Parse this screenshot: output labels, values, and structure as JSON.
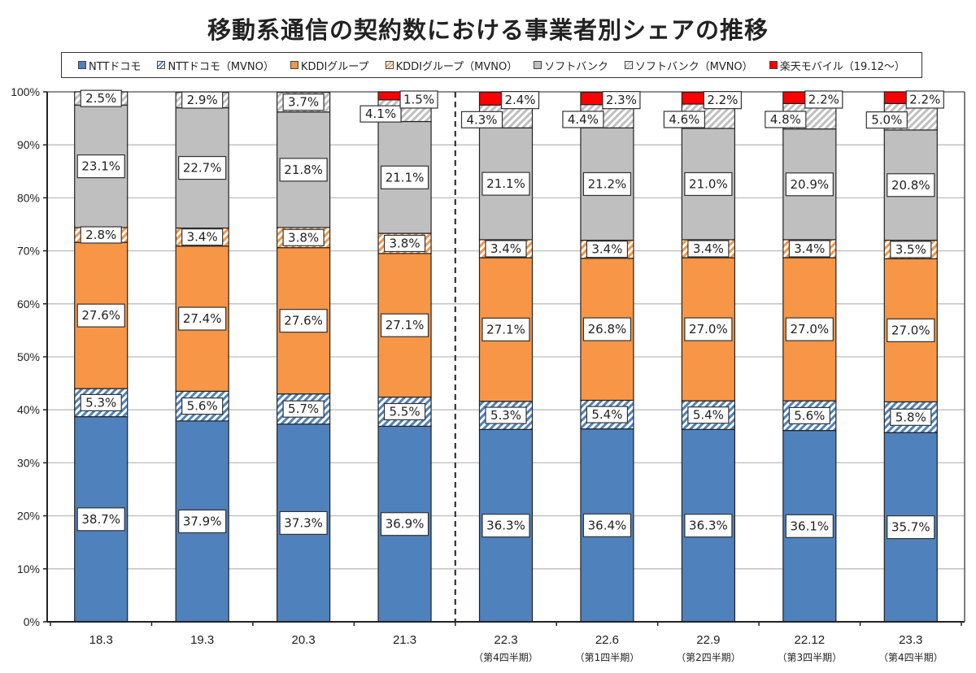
{
  "chart_data": {
    "type": "bar",
    "stacked": true,
    "title": "移動系通信の契約数における事業者別シェアの推移",
    "xlabel": "",
    "ylabel": "",
    "ylim": [
      0,
      100
    ],
    "yticks": [
      "0%",
      "10%",
      "20%",
      "30%",
      "40%",
      "50%",
      "60%",
      "70%",
      "80%",
      "90%",
      "100%"
    ],
    "grid": true,
    "legend_position": "top",
    "categories": [
      "18.3",
      "19.3",
      "20.3",
      "21.3",
      "22.3",
      "22.6",
      "22.9",
      "22.12",
      "23.3"
    ],
    "category_sublabels": [
      "",
      "",
      "",
      "",
      "（第4四半期）",
      "（第1四半期）",
      "（第2四半期）",
      "（第3四半期）",
      "（第4四半期）"
    ],
    "divider_after_category": "21.3",
    "series": [
      {
        "name": "NTTドコモ",
        "color": "#4f81bd",
        "pattern": "solid",
        "values": [
          38.7,
          37.9,
          37.3,
          36.9,
          36.3,
          36.4,
          36.3,
          36.1,
          35.7
        ],
        "labels": [
          "38.7%",
          "37.9%",
          "37.3%",
          "36.9%",
          "36.3%",
          "36.4%",
          "36.3%",
          "36.1%",
          "35.7%"
        ]
      },
      {
        "name": "NTTドコモ（MVNO）",
        "color": "#4f81bd",
        "pattern": "hatch",
        "values": [
          5.3,
          5.6,
          5.7,
          5.5,
          5.3,
          5.4,
          5.4,
          5.6,
          5.8
        ],
        "labels": [
          "5.3%",
          "5.6%",
          "5.7%",
          "5.5%",
          "5.3%",
          "5.4%",
          "5.4%",
          "5.6%",
          "5.8%"
        ]
      },
      {
        "name": "KDDIグループ",
        "color": "#f79646",
        "pattern": "solid",
        "values": [
          27.6,
          27.4,
          27.6,
          27.1,
          27.1,
          26.8,
          27.0,
          27.0,
          27.0
        ],
        "labels": [
          "27.6%",
          "27.4%",
          "27.6%",
          "27.1%",
          "27.1%",
          "26.8%",
          "27.0%",
          "27.0%",
          "27.0%"
        ]
      },
      {
        "name": "KDDIグループ（MVNO）",
        "color": "#f79646",
        "pattern": "hatch",
        "values": [
          2.8,
          3.4,
          3.8,
          3.8,
          3.4,
          3.4,
          3.4,
          3.4,
          3.5
        ],
        "labels": [
          "2.8%",
          "3.4%",
          "3.8%",
          "3.8%",
          "3.4%",
          "3.4%",
          "3.4%",
          "3.4%",
          "3.5%"
        ]
      },
      {
        "name": "ソフトバンク",
        "color": "#bfbfbf",
        "pattern": "solid",
        "values": [
          23.1,
          22.7,
          21.8,
          21.1,
          21.1,
          21.2,
          21.0,
          20.9,
          20.8
        ],
        "labels": [
          "23.1%",
          "22.7%",
          "21.8%",
          "21.1%",
          "21.1%",
          "21.2%",
          "21.0%",
          "20.9%",
          "20.8%"
        ]
      },
      {
        "name": "ソフトバンク（MVNO）",
        "color": "#bfbfbf",
        "pattern": "hatch",
        "values": [
          2.5,
          2.9,
          3.7,
          4.1,
          4.3,
          4.4,
          4.6,
          4.8,
          5.0
        ],
        "labels": [
          "2.5%",
          "2.9%",
          "3.7%",
          "4.1%",
          "4.3%",
          "4.4%",
          "4.6%",
          "4.8%",
          "5.0%"
        ]
      },
      {
        "name": "楽天モバイル（19.12～）",
        "color": "#ff0000",
        "pattern": "solid",
        "values": [
          0,
          0,
          0,
          1.5,
          2.4,
          2.3,
          2.2,
          2.2,
          2.2
        ],
        "labels": [
          "",
          "",
          "",
          "1.5%",
          "2.4%",
          "2.3%",
          "2.2%",
          "2.2%",
          "2.2%"
        ]
      }
    ]
  }
}
